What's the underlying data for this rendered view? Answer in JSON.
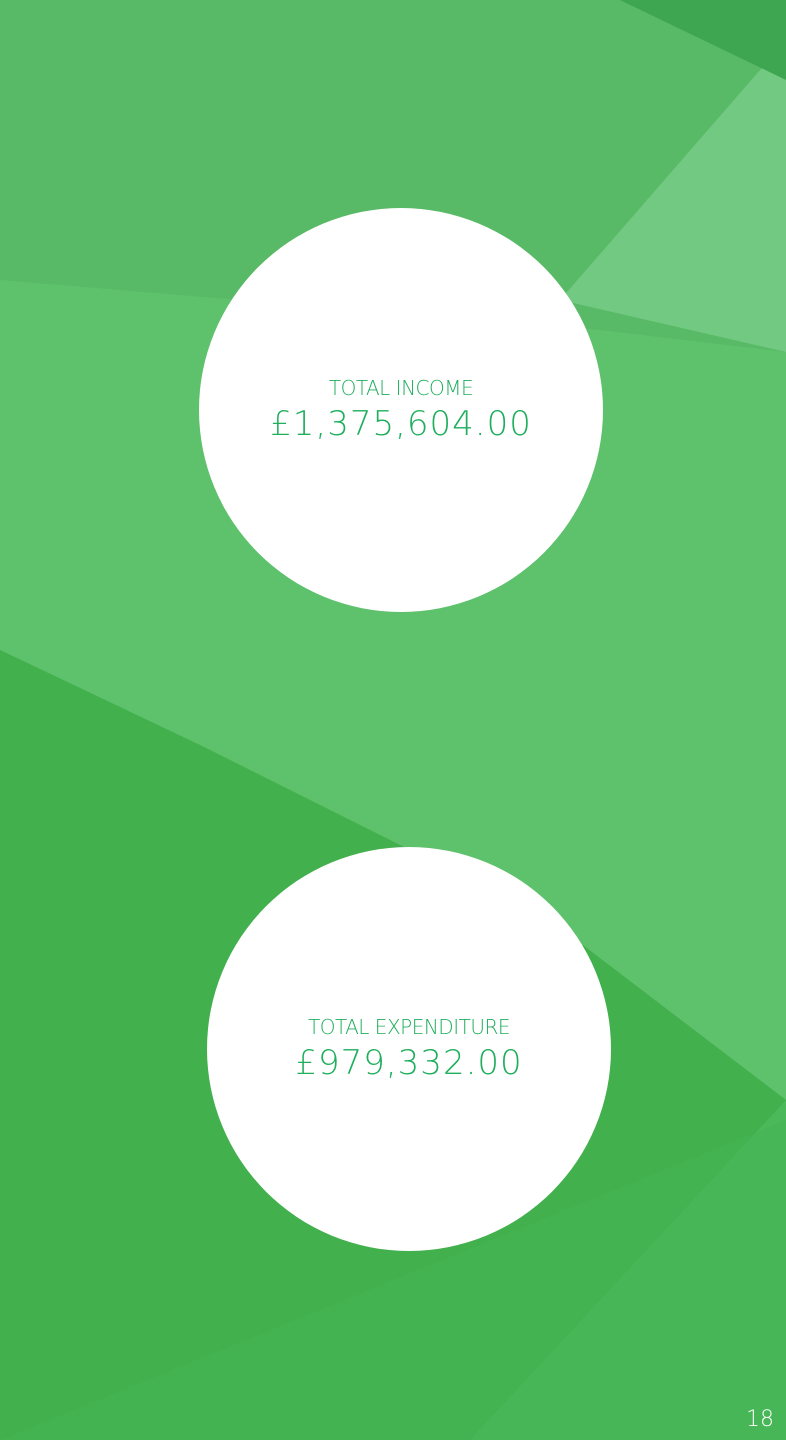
{
  "income": {
    "label": "TOTAL INCOME",
    "amount": "£1,375,604.00"
  },
  "expenditure": {
    "label": "TOTAL EXPENDITURE",
    "amount": "£979,332.00"
  },
  "page_number": "18"
}
